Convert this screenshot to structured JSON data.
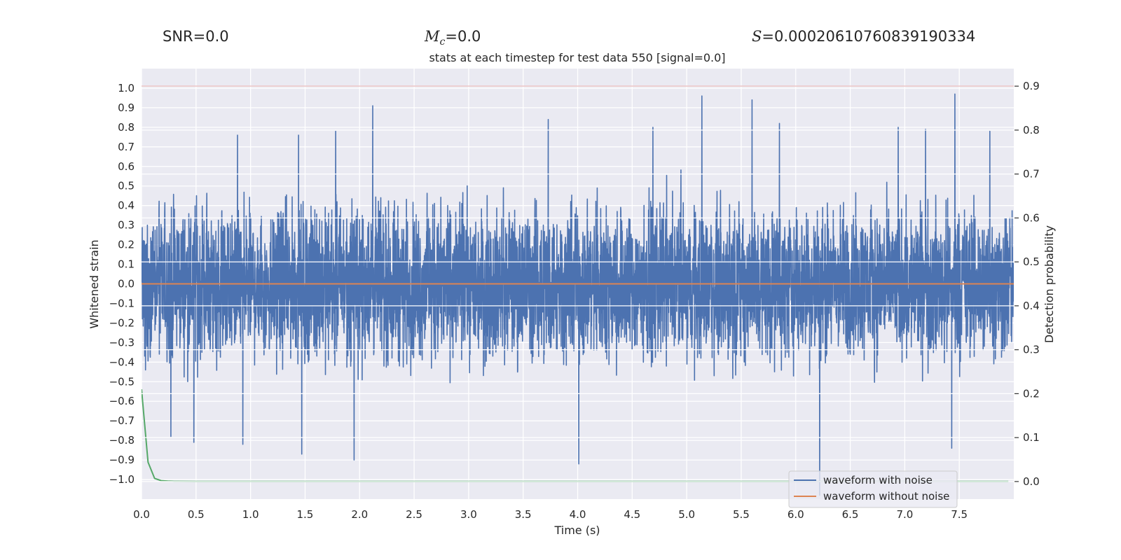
{
  "header": {
    "snr_label": "SNR=",
    "snr_value": "0.0",
    "mc_symbol": "M",
    "mc_subscript": "c",
    "mc_value": "=0.0",
    "s_symbol": "S",
    "s_value": "=0.00020610760839190334"
  },
  "chart_data": {
    "type": "line",
    "title": "stats at each timestep for test data 550 [signal=0.0]",
    "xlabel": "Time (s)",
    "ylabel": "Whitened strain",
    "y2label": "Detection probability",
    "xlim": [
      0.0,
      8.0
    ],
    "ylim": [
      -1.1,
      1.1
    ],
    "y2lim": [
      -0.04,
      0.94
    ],
    "grid": true,
    "x_ticks": [
      0.0,
      0.5,
      1.0,
      1.5,
      2.0,
      2.5,
      3.0,
      3.5,
      4.0,
      4.5,
      5.0,
      5.5,
      6.0,
      6.5,
      7.0,
      7.5
    ],
    "x_tick_labels": [
      "0.0",
      "0.5",
      "1.0",
      "1.5",
      "2.0",
      "2.5",
      "3.0",
      "3.5",
      "4.0",
      "4.5",
      "5.0",
      "5.5",
      "6.0",
      "6.5",
      "7.0",
      "7.5"
    ],
    "y_ticks": [
      1.0,
      0.9,
      0.8,
      0.7,
      0.6,
      0.5,
      0.4,
      0.3,
      0.2,
      0.1,
      0.0,
      -0.1,
      -0.2,
      -0.3,
      -0.4,
      -0.5,
      -0.6,
      -0.7,
      -0.8,
      -0.9,
      -1.0
    ],
    "y_tick_labels": [
      "1.0",
      "0.9",
      "0.8",
      "0.7",
      "0.6",
      "0.5",
      "0.4",
      "0.3",
      "0.2",
      "0.1",
      "0.0",
      "−0.1",
      "−0.2",
      "−0.3",
      "−0.4",
      "−0.5",
      "−0.6",
      "−0.7",
      "−0.8",
      "−0.9",
      "−1.0"
    ],
    "y2_ticks": [
      0.9,
      0.8,
      0.7,
      0.6,
      0.5,
      0.4,
      0.3,
      0.2,
      0.1,
      0.0
    ],
    "y2_tick_labels": [
      "0.9",
      "0.8",
      "0.7",
      "0.6",
      "0.5",
      "0.4",
      "0.3",
      "0.2",
      "0.1",
      "0.0"
    ],
    "colors": {
      "noise": "#4c72b0",
      "clean": "#dd8452",
      "probability": "#55a868",
      "threshold": "#c44e52",
      "background": "#eaeaf2",
      "grid": "#ffffff"
    },
    "series": [
      {
        "name": "waveform with noise",
        "axis": "left",
        "description": "dense noisy whitened strain, approx. uniform noise between -0.5 and 0.5 with spikes",
        "typical_range": [
          -0.55,
          0.55
        ],
        "spikes": [
          {
            "x": 0.27,
            "y": -0.78
          },
          {
            "x": 0.48,
            "y": -0.81
          },
          {
            "x": 0.93,
            "y": -0.82
          },
          {
            "x": 1.47,
            "y": -0.87
          },
          {
            "x": 1.95,
            "y": -0.9
          },
          {
            "x": 4.01,
            "y": -0.92
          },
          {
            "x": 6.22,
            "y": -1.08
          },
          {
            "x": 7.43,
            "y": -0.84
          },
          {
            "x": 2.12,
            "y": 0.91
          },
          {
            "x": 3.73,
            "y": 0.84
          },
          {
            "x": 5.14,
            "y": 0.96
          },
          {
            "x": 5.6,
            "y": 0.94
          },
          {
            "x": 7.46,
            "y": 0.97
          },
          {
            "x": 7.78,
            "y": 0.78
          },
          {
            "x": 4.69,
            "y": 0.8
          },
          {
            "x": 1.44,
            "y": 0.76
          },
          {
            "x": 1.78,
            "y": 0.78
          },
          {
            "x": 0.88,
            "y": 0.76
          },
          {
            "x": 5.85,
            "y": 0.82
          },
          {
            "x": 6.94,
            "y": 0.8
          },
          {
            "x": 7.19,
            "y": 0.79
          }
        ]
      },
      {
        "name": "waveform without noise",
        "axis": "left",
        "x": [
          0.0,
          8.0
        ],
        "y": [
          0.0,
          0.0
        ]
      },
      {
        "name": "detection probability",
        "axis": "right",
        "x": [
          0.0,
          0.06,
          0.12,
          0.18,
          0.24,
          0.3,
          0.5,
          1.0,
          2.0,
          4.0,
          6.0,
          7.95
        ],
        "y": [
          0.21,
          0.044,
          0.007,
          0.002,
          0.001,
          0.0005,
          0.0002,
          0.0002,
          0.0002,
          0.0002,
          0.0002,
          0.0002
        ]
      },
      {
        "name": "threshold",
        "axis": "right",
        "x": [
          0.0,
          8.0
        ],
        "y": [
          0.9,
          0.9
        ]
      }
    ],
    "legend": {
      "position": "lower-right",
      "entries": [
        "waveform with noise",
        "waveform without noise"
      ]
    }
  }
}
